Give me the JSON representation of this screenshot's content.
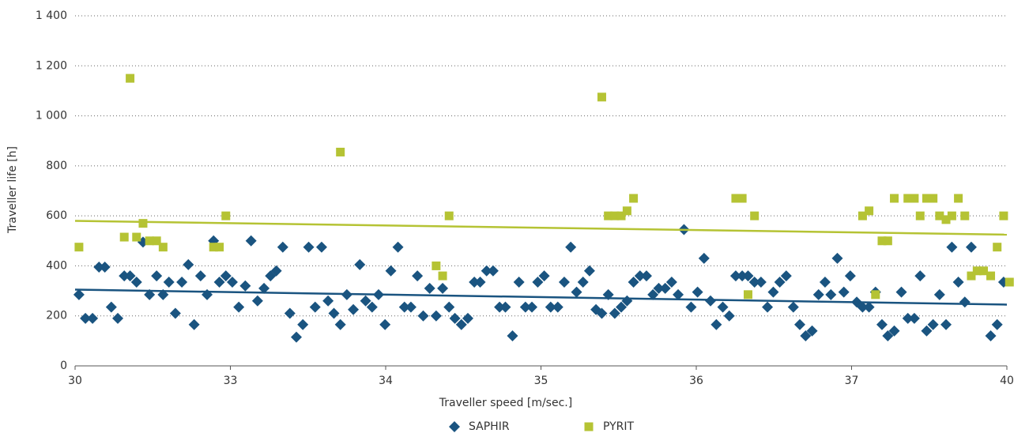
{
  "chart_data": {
    "type": "scatter",
    "x_label": "Traveller speed [m/sec.]",
    "y_label": "Traveller life [h]",
    "xlim": [
      0,
      144
    ],
    "xticks": [
      {
        "value": 0,
        "label": "30"
      },
      {
        "value": 24,
        "label": "33"
      },
      {
        "value": 48,
        "label": "34"
      },
      {
        "value": 72,
        "label": "35"
      },
      {
        "value": 96,
        "label": "36"
      },
      {
        "value": 120,
        "label": "37"
      },
      {
        "value": 144,
        "label": "40"
      }
    ],
    "ylim": [
      0,
      1400
    ],
    "yticks": [
      0,
      200,
      400,
      600,
      800,
      {
        "value": 1000,
        "label": "1 000"
      },
      {
        "value": 1200,
        "label": "1 200"
      },
      {
        "value": 1400,
        "label": "1 400"
      }
    ],
    "grid": true,
    "legend": "bottom",
    "series": [
      {
        "name": "SAPHIR",
        "color": "#1a5480",
        "marker": "diamond",
        "trend": [
          305,
          245
        ],
        "x": [
          0.6,
          1.6,
          2.7,
          3.7,
          4.6,
          5.6,
          6.6,
          7.6,
          8.5,
          9.5,
          10.5,
          11.5,
          12.6,
          13.6,
          14.5,
          15.5,
          16.5,
          17.5,
          18.4,
          19.4,
          20.4,
          21.4,
          22.3,
          23.3,
          24.3,
          25.3,
          26.3,
          27.2,
          28.2,
          29.2,
          30.2,
          31.1,
          32.1,
          33.2,
          34.2,
          35.2,
          36.1,
          37.1,
          38.1,
          39.1,
          40.0,
          41.0,
          42.0,
          43.0,
          44.0,
          44.9,
          45.9,
          46.9,
          47.9,
          48.8,
          49.9,
          50.9,
          51.9,
          52.9,
          53.8,
          54.8,
          55.8,
          56.8,
          57.8,
          58.7,
          59.7,
          60.7,
          61.7,
          62.6,
          63.6,
          64.6,
          65.6,
          66.5,
          67.6,
          68.6,
          69.6,
          70.6,
          71.5,
          72.5,
          73.5,
          74.6,
          75.6,
          76.6,
          77.5,
          78.5,
          79.5,
          80.5,
          81.4,
          82.4,
          83.4,
          84.4,
          85.3,
          86.3,
          87.3,
          88.3,
          89.3,
          90.2,
          91.2,
          92.2,
          93.2,
          94.1,
          95.2,
          96.2,
          97.2,
          98.2,
          99.1,
          100.1,
          101.1,
          102.1,
          103.1,
          104.0,
          105.0,
          106.0,
          107.0,
          107.9,
          108.9,
          109.9,
          111.0,
          112.0,
          112.9,
          113.9,
          114.9,
          115.9,
          116.8,
          117.8,
          118.8,
          119.8,
          120.8,
          121.7,
          122.7,
          123.7,
          124.7,
          125.6,
          126.6,
          127.7,
          128.7,
          129.7,
          130.6,
          131.6,
          132.6,
          133.6,
          134.6,
          135.5,
          136.5,
          137.5,
          138.5,
          141.5,
          142.5,
          143.5
        ],
        "values": [
          285,
          190,
          190,
          395,
          395,
          235,
          190,
          360,
          360,
          335,
          495,
          285,
          360,
          285,
          335,
          210,
          335,
          405,
          165,
          360,
          285,
          500,
          335,
          360,
          335,
          235,
          320,
          500,
          260,
          310,
          360,
          380,
          475,
          210,
          115,
          165,
          475,
          235,
          475,
          260,
          210,
          165,
          285,
          225,
          405,
          260,
          235,
          285,
          165,
          380,
          475,
          235,
          235,
          360,
          200,
          310,
          200,
          310,
          235,
          190,
          165,
          190,
          335,
          335,
          380,
          380,
          235,
          235,
          120,
          335,
          235,
          235,
          335,
          360,
          235,
          235,
          335,
          475,
          295,
          335,
          380,
          225,
          210,
          285,
          210,
          235,
          260,
          335,
          360,
          360,
          285,
          310,
          310,
          335,
          285,
          545,
          235,
          295,
          430,
          260,
          165,
          235,
          200,
          360,
          360,
          360,
          335,
          335,
          235,
          295,
          335,
          360,
          235,
          165,
          120,
          140,
          285,
          335,
          285,
          430,
          295,
          360,
          255,
          235,
          235,
          295,
          165,
          120,
          140,
          295,
          190,
          190,
          360,
          140,
          165,
          285,
          165,
          475,
          335,
          255,
          475,
          120,
          165,
          335
        ]
      },
      {
        "name": "PYRIT",
        "color": "#b5c334",
        "marker": "square",
        "trend": [
          580,
          525
        ],
        "x": [
          0.6,
          7.6,
          8.5,
          9.5,
          10.5,
          11.5,
          12.6,
          13.6,
          21.4,
          22.3,
          23.3,
          41.0,
          55.8,
          56.8,
          57.8,
          81.4,
          82.4,
          83.4,
          84.4,
          85.3,
          86.3,
          102.1,
          103.1,
          104.0,
          105.0,
          121.7,
          122.7,
          123.7,
          124.7,
          125.6,
          126.6,
          128.7,
          129.7,
          130.6,
          131.6,
          132.6,
          133.6,
          134.6,
          135.5,
          136.5,
          137.5,
          138.5,
          139.4,
          140.4,
          141.5,
          142.5,
          143.5,
          144.4
        ],
        "values": [
          475,
          515,
          1150,
          515,
          570,
          500,
          500,
          475,
          475,
          475,
          600,
          855,
          400,
          360,
          600,
          1075,
          600,
          600,
          600,
          620,
          670,
          670,
          670,
          285,
          600,
          600,
          620,
          285,
          500,
          500,
          670,
          670,
          670,
          600,
          670,
          670,
          600,
          585,
          600,
          670,
          600,
          360,
          380,
          380,
          360,
          475,
          600,
          335
        ]
      }
    ]
  }
}
